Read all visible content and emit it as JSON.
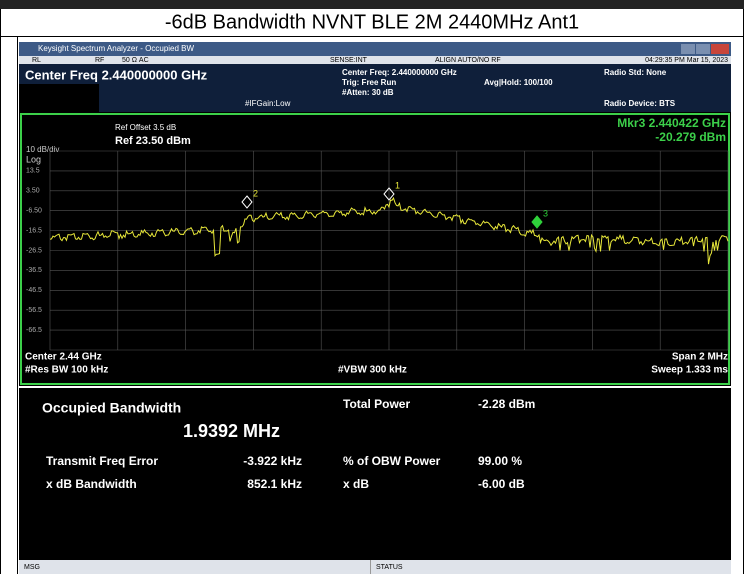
{
  "document": {
    "title": "-6dB Bandwidth NVNT BLE 2M 2440MHz Ant1"
  },
  "window": {
    "title": "Keysight Spectrum Analyzer - Occupied BW",
    "status_row": [
      "RL",
      "RF",
      "50 Ω  AC",
      "SENSE:INT",
      "ALIGN AUTO/NO RF",
      "04:29:35 PM Mar 15, 2023"
    ],
    "center_freq": "Center Freq 2.440000000 GHz",
    "if_gain": "#IFGain:Low",
    "settings": [
      "Center Freq: 2.440000000 GHz",
      "Trig: Free Run",
      "Avg|Hold: 100/100",
      "#Atten: 30 dB"
    ],
    "radio": [
      "Radio Std: None",
      "Radio Device: BTS"
    ]
  },
  "graph": {
    "ref_offset": "Ref Offset 3.5 dB",
    "ref_level": "Ref 23.50 dBm",
    "scale": "10 dB/div",
    "scale_type": "Log",
    "marker_readout": [
      "Mkr3  2.440422 GHz",
      "-20.279 dBm"
    ],
    "y_labels": [
      "13.5",
      "3.50",
      "-6.50",
      "-16.5",
      "-26.5",
      "-36.5",
      "-46.5",
      "-56.5",
      "-66.5"
    ],
    "markers": [
      "1",
      "2",
      "3"
    ],
    "footer": [
      "Center  2.44 GHz",
      "#Res BW  100 kHz",
      "#VBW  300 kHz",
      "Span 2 MHz",
      "Sweep  1.333 ms"
    ]
  },
  "results": {
    "heading": "Occupied Bandwidth",
    "obw": "1.9392 MHz",
    "rows": [
      [
        "Total Power",
        "-2.28 dBm"
      ],
      [
        "Transmit Freq Error",
        "-3.922 kHz",
        "% of OBW Power",
        "99.00 %"
      ],
      [
        "x dB Bandwidth",
        "852.1 kHz",
        "x dB",
        "-6.00 dB"
      ]
    ]
  },
  "statusbar": [
    "MSG",
    "STATUS"
  ]
}
